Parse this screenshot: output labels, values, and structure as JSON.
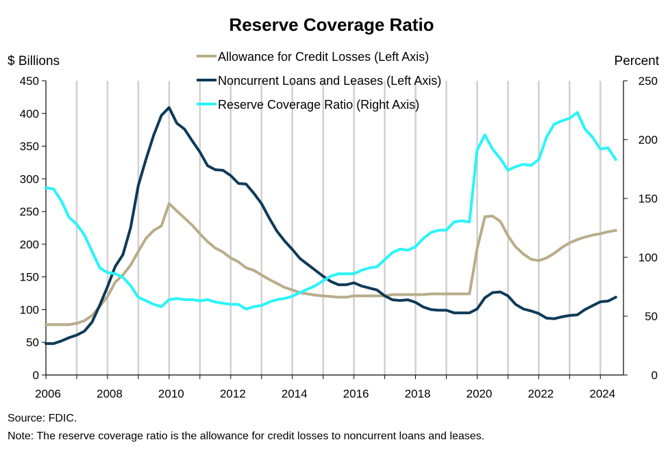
{
  "chart_data": {
    "type": "line",
    "title": "Reserve Coverage Ratio",
    "left_axis_label": "$ Billions",
    "right_axis_label": "Percent",
    "left_ylim": [
      0,
      450
    ],
    "left_yticks": [
      0,
      50,
      100,
      150,
      200,
      250,
      300,
      350,
      400,
      450
    ],
    "right_ylim": [
      0,
      250
    ],
    "right_yticks": [
      0,
      50,
      100,
      150,
      200,
      250
    ],
    "xlim": [
      2006,
      2024.75
    ],
    "xticks": [
      2006,
      2008,
      2010,
      2012,
      2014,
      2016,
      2018,
      2020,
      2022,
      2024
    ],
    "grid": "vertical",
    "legend_position": "top-center",
    "colors": {
      "allowance": "#b9ad8a",
      "noncurrent": "#0f3a58",
      "ratio": "#2af4fa",
      "grid": "#d0d0d0",
      "axis": "#000000"
    },
    "series": [
      {
        "name": "Allowance for Credit Losses (Left Axis)",
        "axis": "left",
        "color": "#b9ad8a",
        "x": [
          2006.0,
          2006.25,
          2006.5,
          2006.75,
          2007.0,
          2007.25,
          2007.5,
          2007.75,
          2008.0,
          2008.25,
          2008.5,
          2008.75,
          2009.0,
          2009.25,
          2009.5,
          2009.75,
          2010.0,
          2010.25,
          2010.5,
          2010.75,
          2011.0,
          2011.25,
          2011.5,
          2011.75,
          2012.0,
          2012.25,
          2012.5,
          2012.75,
          2013.0,
          2013.25,
          2013.5,
          2013.75,
          2014.0,
          2014.25,
          2014.5,
          2014.75,
          2015.0,
          2015.25,
          2015.5,
          2015.75,
          2016.0,
          2016.25,
          2016.5,
          2016.75,
          2017.0,
          2017.25,
          2017.5,
          2017.75,
          2018.0,
          2018.25,
          2018.5,
          2018.75,
          2019.0,
          2019.25,
          2019.5,
          2019.75,
          2020.0,
          2020.25,
          2020.5,
          2020.75,
          2021.0,
          2021.25,
          2021.5,
          2021.75,
          2022.0,
          2022.25,
          2022.5,
          2022.75,
          2023.0,
          2023.25,
          2023.5,
          2023.75,
          2024.0,
          2024.25,
          2024.5
        ],
        "values": [
          77,
          77,
          77,
          77,
          79,
          83,
          91,
          105,
          120,
          142,
          153,
          168,
          189,
          209,
          221,
          228,
          262,
          251,
          240,
          229,
          216,
          204,
          194,
          188,
          179,
          173,
          164,
          160,
          153,
          146,
          140,
          134,
          130,
          126,
          124,
          122,
          121,
          120,
          119,
          119,
          121,
          121,
          121,
          121,
          121,
          123,
          123,
          123,
          123,
          123,
          124,
          124,
          124,
          124,
          124,
          124,
          193,
          242,
          243,
          235,
          213,
          196,
          185,
          177,
          175,
          179,
          186,
          195,
          202,
          207,
          211,
          214,
          216,
          219,
          221
        ]
      },
      {
        "name": "Noncurrent Loans and Leases (Left Axis)",
        "axis": "left",
        "color": "#0f3a58",
        "x": [
          2006.0,
          2006.25,
          2006.5,
          2006.75,
          2007.0,
          2007.25,
          2007.5,
          2007.75,
          2008.0,
          2008.25,
          2008.5,
          2008.75,
          2009.0,
          2009.25,
          2009.5,
          2009.75,
          2010.0,
          2010.25,
          2010.5,
          2010.75,
          2011.0,
          2011.25,
          2011.5,
          2011.75,
          2012.0,
          2012.25,
          2012.5,
          2012.75,
          2013.0,
          2013.25,
          2013.5,
          2013.75,
          2014.0,
          2014.25,
          2014.5,
          2014.75,
          2015.0,
          2015.25,
          2015.5,
          2015.75,
          2016.0,
          2016.25,
          2016.5,
          2016.75,
          2017.0,
          2017.25,
          2017.5,
          2017.75,
          2018.0,
          2018.25,
          2018.5,
          2018.75,
          2019.0,
          2019.25,
          2019.5,
          2019.75,
          2020.0,
          2020.25,
          2020.5,
          2020.75,
          2021.0,
          2021.25,
          2021.5,
          2021.75,
          2022.0,
          2022.25,
          2022.5,
          2022.75,
          2023.0,
          2023.25,
          2023.5,
          2023.75,
          2024.0,
          2024.25,
          2024.5
        ],
        "values": [
          48,
          48,
          52,
          57,
          61,
          67,
          81,
          107,
          135,
          166,
          184,
          225,
          290,
          330,
          367,
          397,
          409,
          385,
          376,
          358,
          341,
          320,
          314,
          313,
          305,
          293,
          292,
          278,
          262,
          240,
          220,
          205,
          192,
          178,
          169,
          160,
          151,
          143,
          138,
          138,
          141,
          136,
          133,
          130,
          121,
          115,
          114,
          115,
          111,
          104,
          100,
          99,
          99,
          95,
          95,
          95,
          101,
          118,
          126,
          127,
          121,
          108,
          101,
          98,
          94,
          87,
          86,
          89,
          91,
          92,
          100,
          106,
          112,
          113,
          119
        ]
      },
      {
        "name": "Reserve Coverage Ratio (Right Axis)",
        "axis": "right",
        "color": "#2af4fa",
        "x": [
          2006.0,
          2006.25,
          2006.5,
          2006.75,
          2007.0,
          2007.25,
          2007.5,
          2007.75,
          2008.0,
          2008.25,
          2008.5,
          2008.75,
          2009.0,
          2009.25,
          2009.5,
          2009.75,
          2010.0,
          2010.25,
          2010.5,
          2010.75,
          2011.0,
          2011.25,
          2011.5,
          2011.75,
          2012.0,
          2012.25,
          2012.5,
          2012.75,
          2013.0,
          2013.25,
          2013.5,
          2013.75,
          2014.0,
          2014.25,
          2014.5,
          2014.75,
          2015.0,
          2015.25,
          2015.5,
          2015.75,
          2016.0,
          2016.25,
          2016.5,
          2016.75,
          2017.0,
          2017.25,
          2017.5,
          2017.75,
          2018.0,
          2018.25,
          2018.5,
          2018.75,
          2019.0,
          2019.25,
          2019.5,
          2019.75,
          2020.0,
          2020.25,
          2020.5,
          2020.75,
          2021.0,
          2021.25,
          2021.5,
          2021.75,
          2022.0,
          2022.25,
          2022.5,
          2022.75,
          2023.0,
          2023.25,
          2023.5,
          2023.75,
          2024.0,
          2024.25,
          2024.5
        ],
        "values": [
          159,
          158,
          148,
          134,
          128,
          119,
          105,
          91,
          87,
          86,
          83,
          76,
          66,
          63,
          60,
          58,
          64,
          65,
          64,
          64,
          63,
          64,
          62,
          61,
          60,
          60,
          56,
          58,
          59,
          62,
          64,
          65,
          67,
          70,
          73,
          76,
          80,
          84,
          86,
          86,
          86,
          89,
          91,
          92,
          98,
          104,
          107,
          106,
          109,
          116,
          121,
          123,
          123,
          130,
          131,
          130,
          191,
          204,
          192,
          184,
          174,
          177,
          179,
          178,
          183,
          202,
          213,
          216,
          218,
          223,
          209,
          202,
          192,
          193,
          183
        ]
      }
    ]
  },
  "footnotes": {
    "source": "Source: FDIC.",
    "note": "Note: The reserve coverage ratio is the allowance for credit losses to noncurrent loans and leases."
  }
}
